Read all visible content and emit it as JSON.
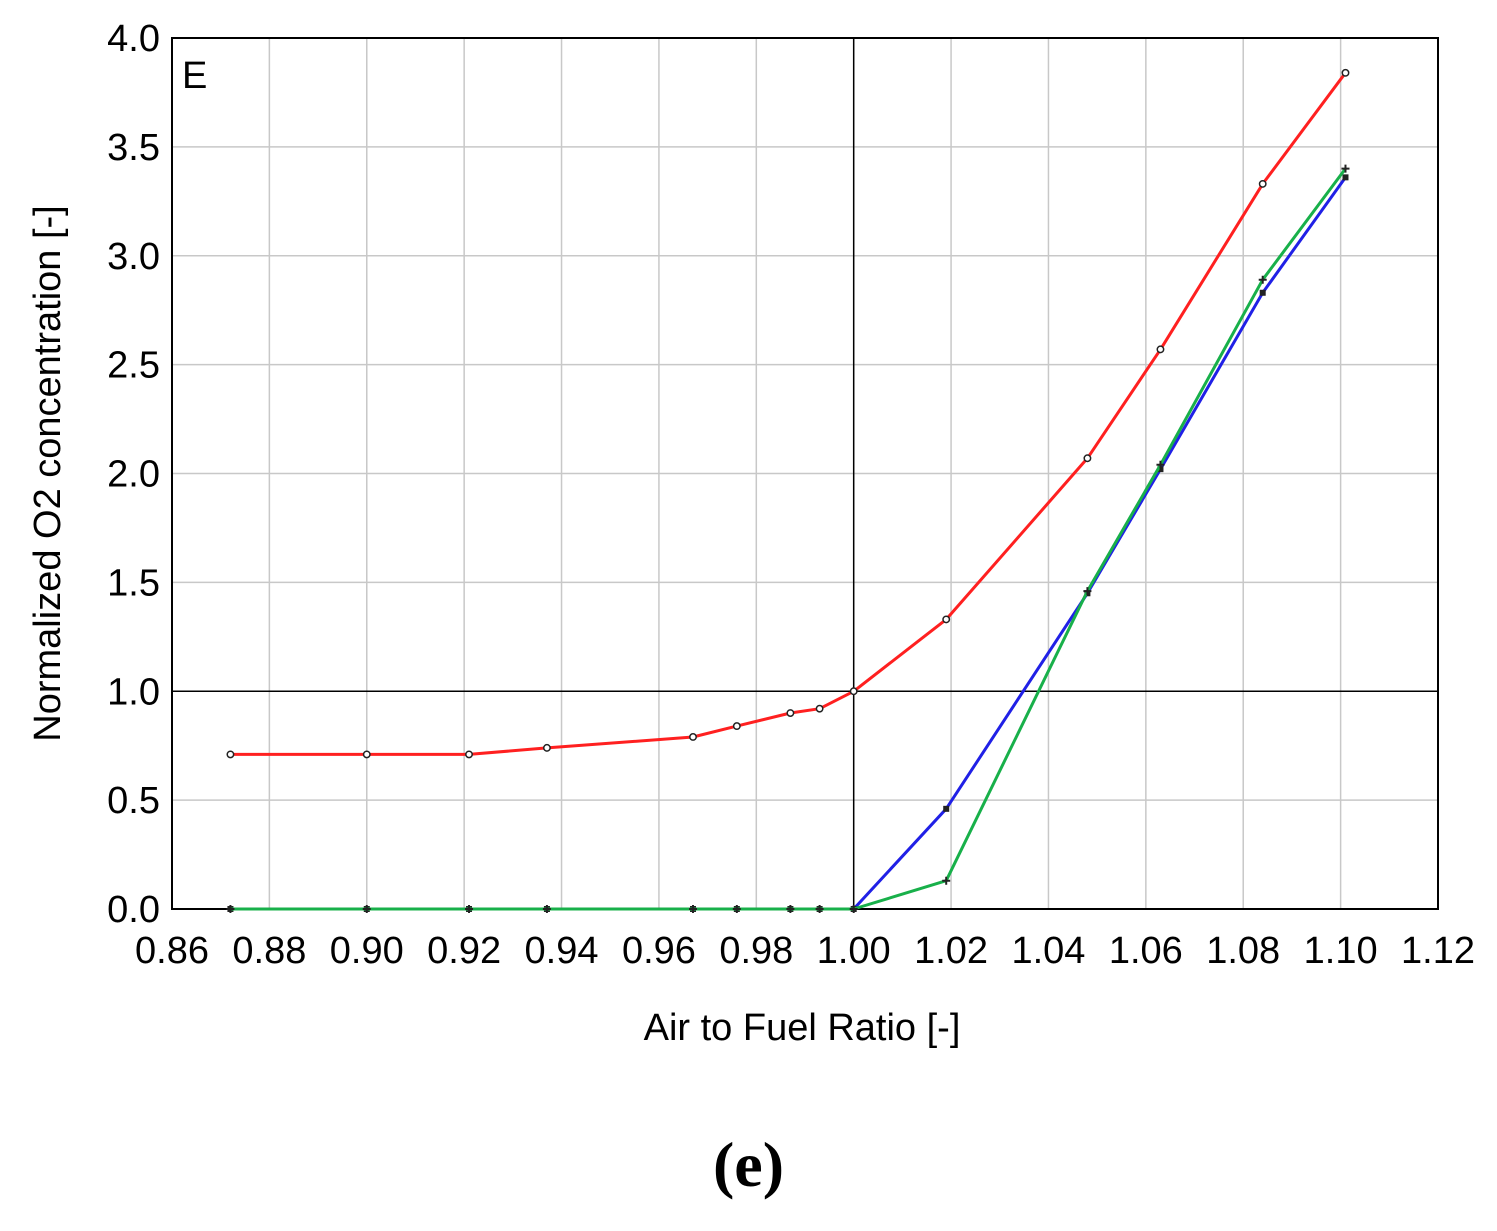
{
  "panel_label": "E",
  "caption": "(e)",
  "chart_data": {
    "type": "line",
    "title": "",
    "xlabel": "Air to Fuel Ratio [-]",
    "ylabel": "Normalized O2 concentration [-]",
    "xlim": [
      0.86,
      1.12
    ],
    "ylim": [
      0.0,
      4.0
    ],
    "xticks": [
      "0.86",
      "0.88",
      "0.90",
      "0.92",
      "0.94",
      "0.96",
      "0.98",
      "1.00",
      "1.02",
      "1.04",
      "1.06",
      "1.08",
      "1.10",
      "1.12"
    ],
    "yticks": [
      "0.0",
      "0.5",
      "1.0",
      "1.5",
      "2.0",
      "2.5",
      "3.0",
      "3.5",
      "4.0"
    ],
    "grid": true,
    "reference_lines": {
      "x": 1.0,
      "y": 1.0
    },
    "series": [
      {
        "color": "#ff2020",
        "marker": "circle",
        "x": [
          0.872,
          0.9,
          0.921,
          0.937,
          0.967,
          0.976,
          0.987,
          0.993,
          1.0,
          1.019,
          1.048,
          1.063,
          1.084,
          1.101
        ],
        "y": [
          0.71,
          0.71,
          0.71,
          0.74,
          0.79,
          0.84,
          0.9,
          0.92,
          1.0,
          1.33,
          2.07,
          2.57,
          3.33,
          3.84
        ]
      },
      {
        "color": "#2020e6",
        "marker": "square",
        "x": [
          0.872,
          0.9,
          0.921,
          0.937,
          0.967,
          0.976,
          0.987,
          0.993,
          1.0,
          1.019,
          1.048,
          1.063,
          1.084,
          1.101
        ],
        "y": [
          0.0,
          0.0,
          0.0,
          0.0,
          0.0,
          0.0,
          0.0,
          0.0,
          0.0,
          0.46,
          1.45,
          2.02,
          2.83,
          3.36
        ]
      },
      {
        "color": "#18b04a",
        "marker": "plus",
        "x": [
          0.872,
          0.9,
          0.921,
          0.937,
          0.967,
          0.976,
          0.987,
          0.993,
          1.0,
          1.019,
          1.048,
          1.063,
          1.084,
          1.101
        ],
        "y": [
          0.0,
          0.0,
          0.0,
          0.0,
          0.0,
          0.0,
          0.0,
          0.0,
          0.0,
          0.13,
          1.46,
          2.04,
          2.89,
          3.4
        ]
      }
    ]
  }
}
